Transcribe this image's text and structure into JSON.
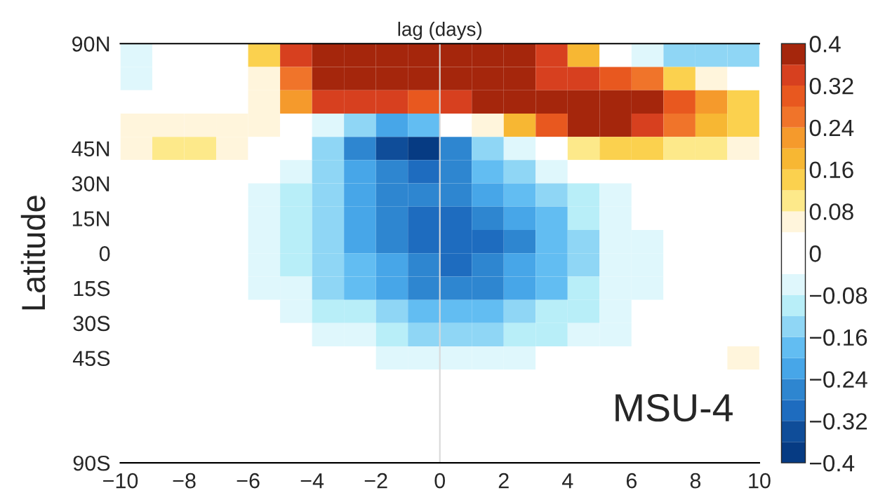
{
  "chart_data": {
    "type": "heatmap",
    "title": "lag (days)",
    "ylabel": "Latitude",
    "x": [
      -9.5,
      -8.5,
      -7.5,
      -6.5,
      -5.5,
      -4.5,
      -3.5,
      -2.5,
      -1.5,
      -0.5,
      0.5,
      1.5,
      2.5,
      3.5,
      4.5,
      5.5,
      6.5,
      7.5,
      8.5,
      9.5
    ],
    "cells": [
      [
        -0.05,
        -0.03,
        0,
        0,
        0.15,
        0.34,
        0.39,
        0.4,
        0.4,
        0.4,
        0.4,
        0.39,
        0.37,
        0.33,
        0.18,
        0,
        -0.08,
        -0.13,
        -0.15,
        -0.13
      ],
      [
        -0.05,
        -0.01,
        0.03,
        0.03,
        0.07,
        0.25,
        0.4,
        0.4,
        0.4,
        0.4,
        0.39,
        0.38,
        0.37,
        0.35,
        0.34,
        0.3,
        0.24,
        0.15,
        0.05,
        -0.03
      ],
      [
        0.02,
        0.02,
        0.02,
        0.03,
        0.06,
        0.2,
        0.32,
        0.32,
        0.32,
        0.31,
        0.34,
        0.38,
        0.38,
        0.39,
        0.4,
        0.4,
        0.38,
        0.3,
        0.22,
        0.14
      ],
      [
        0.04,
        0.04,
        0.04,
        0.04,
        0.04,
        0,
        -0.08,
        -0.15,
        -0.22,
        -0.17,
        -0.04,
        0.07,
        0.17,
        0.29,
        0.36,
        0.37,
        0.33,
        0.26,
        0.19,
        0.13
      ],
      [
        0.07,
        0.1,
        0.1,
        0.07,
        0.03,
        -0.04,
        -0.15,
        -0.25,
        -0.34,
        -0.37,
        -0.28,
        -0.15,
        -0.07,
        0.01,
        0.09,
        0.13,
        0.13,
        0.11,
        0.09,
        0.07
      ],
      [
        0.02,
        0.02,
        0.02,
        0.02,
        -0.02,
        -0.08,
        -0.14,
        -0.22,
        -0.28,
        -0.29,
        -0.25,
        -0.19,
        -0.13,
        -0.08,
        -0.03,
        0,
        0,
        0,
        0,
        0
      ],
      [
        0,
        0,
        0,
        -0.03,
        -0.07,
        -0.1,
        -0.15,
        -0.21,
        -0.26,
        -0.28,
        -0.27,
        -0.23,
        -0.18,
        -0.13,
        -0.09,
        -0.05,
        -0.02,
        0,
        0,
        0
      ],
      [
        0,
        0,
        0,
        -0.03,
        -0.07,
        -0.1,
        -0.15,
        -0.21,
        -0.26,
        -0.29,
        -0.3,
        -0.28,
        -0.23,
        -0.17,
        -0.12,
        -0.08,
        -0.04,
        -0.01,
        0,
        0
      ],
      [
        0,
        0,
        0,
        -0.02,
        -0.06,
        -0.1,
        -0.15,
        -0.21,
        -0.26,
        -0.29,
        -0.3,
        -0.29,
        -0.25,
        -0.19,
        -0.13,
        -0.08,
        -0.05,
        -0.02,
        0,
        0
      ],
      [
        0,
        0,
        0,
        -0.02,
        -0.06,
        -0.1,
        -0.15,
        -0.2,
        -0.24,
        -0.27,
        -0.29,
        -0.28,
        -0.24,
        -0.19,
        -0.13,
        -0.08,
        -0.05,
        -0.03,
        -0.01,
        0
      ],
      [
        0,
        0,
        0,
        -0.02,
        -0.05,
        -0.08,
        -0.13,
        -0.18,
        -0.22,
        -0.25,
        -0.25,
        -0.25,
        -0.22,
        -0.17,
        -0.12,
        -0.08,
        -0.05,
        -0.04,
        -0.03,
        -0.01
      ],
      [
        0,
        0,
        0,
        0,
        -0.02,
        -0.06,
        -0.09,
        -0.12,
        -0.16,
        -0.19,
        -0.2,
        -0.19,
        -0.16,
        -0.12,
        -0.09,
        -0.06,
        -0.04,
        -0.03,
        -0.03,
        -0.03
      ],
      [
        0,
        0,
        0,
        0,
        0,
        -0.02,
        -0.05,
        -0.08,
        -0.11,
        -0.13,
        -0.14,
        -0.13,
        -0.11,
        -0.09,
        -0.07,
        -0.05,
        -0.04,
        -0.04,
        -0.03,
        -0.03
      ],
      [
        0,
        0,
        0,
        0,
        0,
        0,
        -0.02,
        -0.04,
        -0.05,
        -0.06,
        -0.06,
        -0.05,
        -0.05,
        -0.04,
        -0.03,
        -0.03,
        -0.03,
        -0.03,
        -0.03,
        0.04
      ],
      [
        0,
        0,
        0,
        0,
        0,
        0,
        0,
        -0.02,
        -0.02,
        -0.02,
        -0.02,
        -0.02,
        -0.02,
        -0.02,
        -0.02,
        -0.02,
        -0.02,
        -0.01,
        0,
        0
      ],
      [
        0,
        0,
        0,
        0,
        0,
        0,
        0,
        0,
        0,
        0,
        0,
        0,
        0,
        0,
        0,
        0,
        0,
        0,
        0,
        0
      ],
      [
        0,
        0,
        0,
        0,
        0,
        0,
        0,
        0,
        0,
        0,
        0,
        0,
        0,
        0,
        0,
        0,
        0,
        0,
        0,
        0
      ],
      [
        0,
        0,
        0,
        0,
        0,
        0,
        0,
        0,
        0,
        0,
        0,
        0,
        0,
        0,
        0,
        0,
        0,
        0,
        0,
        0
      ]
    ],
    "colors": [
      "#063b83",
      "#0f4d99",
      "#1e6cbf",
      "#2e86d0",
      "#47a6e8",
      "#62bdf2",
      "#8fd6f5",
      "#b8eef8",
      "#dff7fc",
      "#ffffff",
      "#ffffff",
      "#fff5dc",
      "#fde98a",
      "#fbd14e",
      "#f7b733",
      "#f59a2c",
      "#f0742a",
      "#e8581f",
      "#d7401f",
      "#a5260c"
    ],
    "xlim": [
      -10,
      10
    ],
    "xticks": [
      {
        "value": -10,
        "label": "−10"
      },
      {
        "value": -8,
        "label": "−8"
      },
      {
        "value": -6,
        "label": "−6"
      },
      {
        "value": -4,
        "label": "−4"
      },
      {
        "value": -2,
        "label": "−2"
      },
      0,
      2,
      4,
      6,
      8,
      10
    ],
    "ylim": [
      -90,
      90
    ],
    "yticks": [
      {
        "value": 90,
        "label": "90N"
      },
      {
        "value": 45,
        "label": "45N"
      },
      {
        "value": 30,
        "label": "30N"
      },
      {
        "value": 15,
        "label": "15N"
      },
      0,
      {
        "value": -15,
        "label": "15S"
      },
      {
        "value": -30,
        "label": "30S"
      },
      {
        "value": -45,
        "label": "45S"
      },
      {
        "value": -90,
        "label": "90S"
      }
    ],
    "clim": [
      -0.4,
      0.4
    ],
    "cticks": [
      {
        "value": -0.4,
        "label": "−0.4"
      },
      {
        "value": -0.32,
        "label": "−0.32"
      },
      {
        "value": -0.24,
        "label": "−0.24"
      },
      {
        "value": -0.16,
        "label": "−0.16"
      },
      {
        "value": -0.08,
        "label": "−0.08"
      },
      0,
      0.08,
      0.16,
      0.24,
      0.32,
      0.4
    ],
    "ref_lines": [
      {
        "axis": "x",
        "value": 0,
        "color": "#d9d9d9"
      }
    ],
    "annotations": [
      "MSU-4"
    ],
    "grid": false
  }
}
